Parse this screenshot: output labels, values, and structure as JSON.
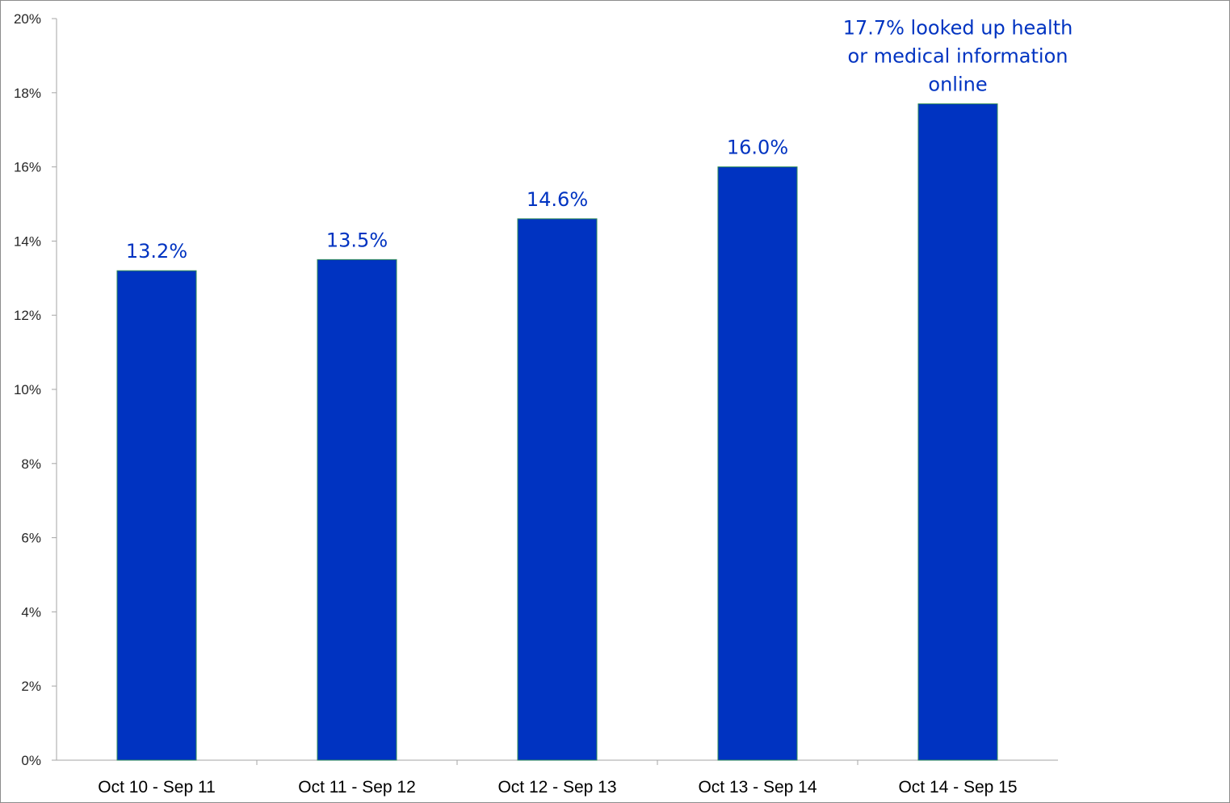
{
  "chart_data": {
    "type": "bar",
    "categories": [
      "Oct 10 - Sep 11",
      "Oct 11 - Sep 12",
      "Oct 12 - Sep 13",
      "Oct 13 - Sep 14",
      "Oct 14 - Sep 15"
    ],
    "values": [
      13.2,
      13.5,
      14.6,
      16.0,
      17.7
    ],
    "data_labels": [
      [
        "13.2%"
      ],
      [
        "13.5%"
      ],
      [
        "14.6%"
      ],
      [
        "16.0%"
      ],
      [
        "17.7% looked up health",
        "or medical information",
        "online"
      ]
    ],
    "y_ticks": [
      "0%",
      "2%",
      "4%",
      "6%",
      "8%",
      "10%",
      "12%",
      "14%",
      "16%",
      "18%",
      "20%"
    ],
    "ylim": [
      0,
      20
    ],
    "title": "",
    "xlabel": "",
    "ylabel": "",
    "grid": false,
    "legend": "none",
    "colors": {
      "bar": "#0033c1",
      "bar_edge": "#2e8b57",
      "label": "#0033c1",
      "axis": "#a6a6a6"
    }
  }
}
